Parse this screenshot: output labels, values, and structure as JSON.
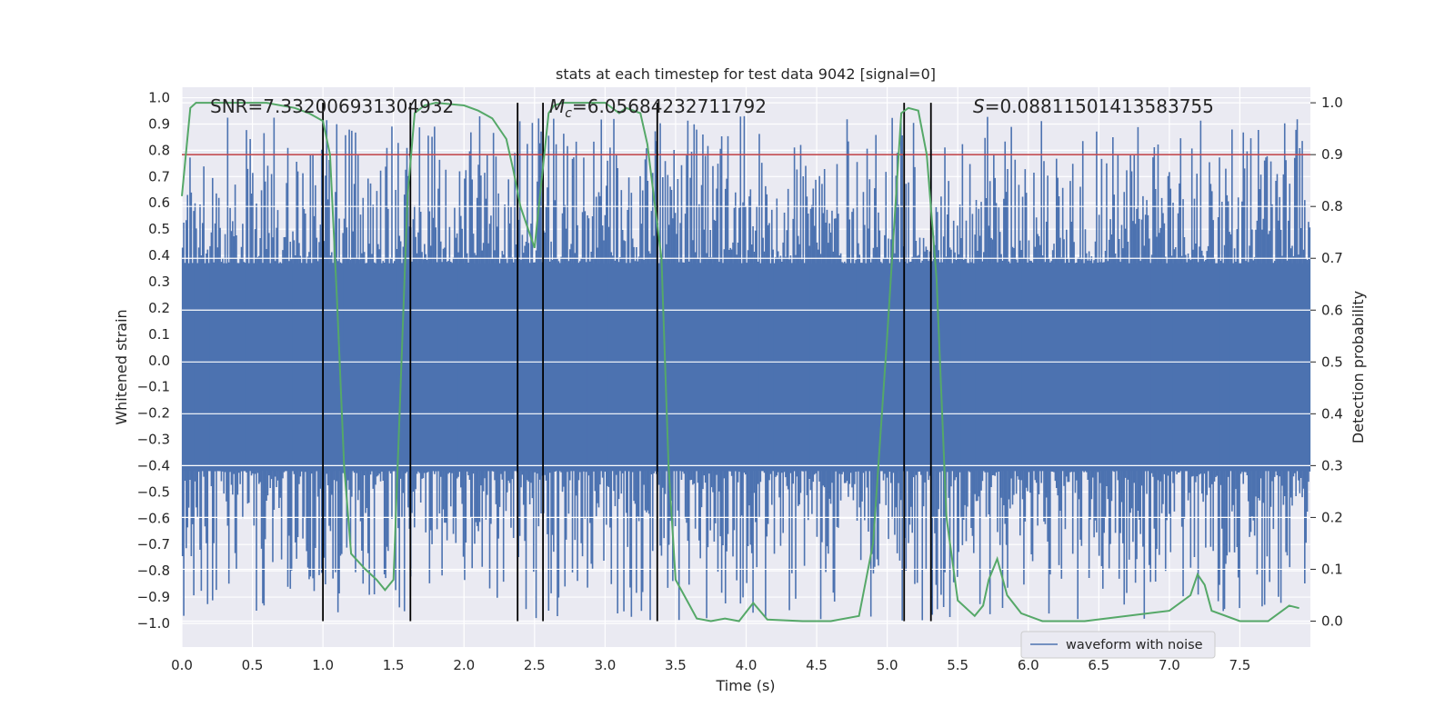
{
  "chart_data": {
    "type": "line",
    "title": "stats at each timestep for test data 9042 [signal=0]",
    "xlabel": "Time (s)",
    "ylabel_left": "Whitened strain",
    "ylabel_right": "Detection probability",
    "xlim": [
      0.0,
      8.0
    ],
    "ylim_left": [
      -1.09,
      1.04
    ],
    "ylim_right": [
      -0.05,
      1.03
    ],
    "x_ticks": [
      "0.0",
      "0.5",
      "1.0",
      "1.5",
      "2.0",
      "2.5",
      "3.0",
      "3.5",
      "4.0",
      "4.5",
      "5.0",
      "5.5",
      "6.0",
      "6.5",
      "7.0",
      "7.5"
    ],
    "y_left_ticks": [
      "1.0",
      "0.9",
      "0.8",
      "0.7",
      "0.6",
      "0.5",
      "0.4",
      "0.3",
      "0.2",
      "0.1",
      "0.0",
      "−0.1",
      "−0.2",
      "−0.3",
      "−0.4",
      "−0.5",
      "−0.6",
      "−0.7",
      "−0.8",
      "−0.9",
      "−1.0"
    ],
    "y_right_ticks": [
      "1.0",
      "0.9",
      "0.8",
      "0.7",
      "0.6",
      "0.5",
      "0.4",
      "0.3",
      "0.2",
      "0.1",
      "0.0"
    ],
    "annotations": {
      "snr": "SNR=7.332006931304932",
      "mc_symbol": "M",
      "mc_sub": "c",
      "mc_value": "=6.05684232711792",
      "s_symbol": "S",
      "s_value": "=0.08811501413583755"
    },
    "threshold": 0.9,
    "detection_bounds": [
      1.0,
      1.62,
      2.38,
      2.56,
      3.37,
      5.12,
      5.31
    ],
    "series": [
      {
        "name": "waveform with noise",
        "color": "#4c72b0",
        "axis": "left",
        "envelope": {
          "core_upper": 0.37,
          "core_lower": -0.42,
          "peak_max": 0.93,
          "peak_min": -0.99,
          "sample_count": 900
        }
      },
      {
        "name": "detection probability",
        "color": "#55a868",
        "axis": "right",
        "x": [
          0.0,
          0.06,
          0.1,
          0.2,
          0.4,
          0.6,
          0.8,
          0.9,
          1.0,
          1.05,
          1.1,
          1.15,
          1.2,
          1.3,
          1.38,
          1.44,
          1.5,
          1.6,
          1.65,
          1.72,
          1.8,
          2.0,
          2.1,
          2.2,
          2.3,
          2.35,
          2.4,
          2.5,
          2.6,
          2.64,
          2.7,
          2.8,
          3.0,
          3.1,
          3.15,
          3.25,
          3.3,
          3.4,
          3.45,
          3.5,
          3.6,
          3.65,
          3.75,
          3.85,
          3.95,
          4.05,
          4.15,
          4.22,
          4.4,
          4.6,
          4.8,
          4.9,
          5.0,
          5.1,
          5.15,
          5.22,
          5.28,
          5.35,
          5.42,
          5.5,
          5.62,
          5.68,
          5.72,
          5.78,
          5.85,
          5.95,
          6.1,
          6.4,
          7.0,
          7.15,
          7.2,
          7.25,
          7.3,
          7.5,
          7.7,
          7.85,
          7.92
        ],
        "values": [
          0.82,
          0.99,
          1.0,
          1.0,
          1.0,
          1.0,
          0.99,
          0.98,
          0.965,
          0.9,
          0.62,
          0.3,
          0.13,
          0.1,
          0.08,
          0.06,
          0.08,
          0.82,
          0.98,
          0.995,
          1.0,
          0.995,
          0.985,
          0.97,
          0.93,
          0.87,
          0.8,
          0.72,
          0.98,
          0.995,
          1.0,
          1.0,
          1.0,
          0.98,
          0.99,
          0.98,
          0.92,
          0.7,
          0.3,
          0.08,
          0.03,
          0.005,
          0.0,
          0.005,
          0.0,
          0.035,
          0.003,
          0.002,
          0.0,
          0.0,
          0.01,
          0.15,
          0.55,
          0.98,
          0.99,
          0.985,
          0.9,
          0.66,
          0.2,
          0.04,
          0.01,
          0.03,
          0.08,
          0.12,
          0.05,
          0.015,
          0.0,
          0.0,
          0.02,
          0.05,
          0.09,
          0.07,
          0.02,
          0.0,
          0.0,
          0.03,
          0.025
        ]
      }
    ],
    "legend": {
      "label": "waveform with noise",
      "placement": "lower-right"
    }
  }
}
